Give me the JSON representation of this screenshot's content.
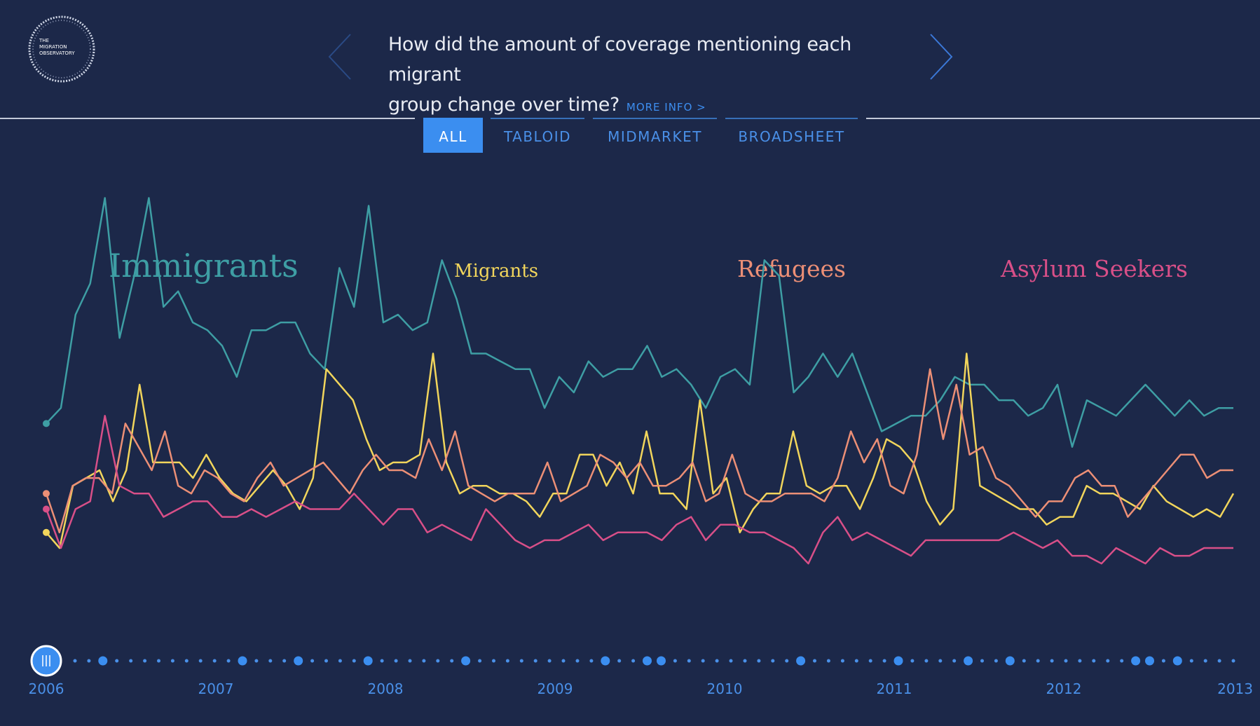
{
  "header": {
    "logo_lines": [
      "THE",
      "MIGRATION",
      "OBSERVATORY"
    ],
    "question_line1": "How did the amount of coverage mentioning each migrant",
    "question_line2": "group change over time?",
    "more_info": "MORE INFO >"
  },
  "tabs": [
    {
      "label": "ALL",
      "active": true
    },
    {
      "label": "TABLOID",
      "active": false
    },
    {
      "label": "MIDMARKET",
      "active": false
    },
    {
      "label": "BROADSHEET",
      "active": false
    }
  ],
  "colors": {
    "background": "#1c2849",
    "accent": "#3b8ef0",
    "immigrants": "#3e9ea4",
    "migrants": "#f1d55c",
    "refugees": "#ec8f76",
    "asylum_seekers": "#d84f88"
  },
  "chart_data": {
    "type": "line",
    "x_axis": {
      "start": 2006,
      "end": 2013,
      "ticks": [
        "2006",
        "2007",
        "2008",
        "2009",
        "2010",
        "2011",
        "2012",
        "2013"
      ]
    },
    "y_range": [
      0,
      100
    ],
    "grid": false,
    "series": [
      {
        "name": "Immigrants",
        "color": "#3e9ea4",
        "values": [
          46,
          48,
          60,
          64,
          75,
          57,
          65,
          75,
          61,
          63,
          59,
          58,
          56,
          52,
          58,
          58,
          59,
          59,
          55,
          53,
          66,
          61,
          74,
          59,
          60,
          58,
          59,
          67,
          62,
          55,
          55,
          54,
          53,
          53,
          48,
          52,
          50,
          54,
          52,
          53,
          53,
          56,
          52,
          53,
          51,
          48,
          52,
          53,
          51,
          67,
          65,
          50,
          52,
          55,
          52,
          55,
          50,
          45,
          46,
          47,
          47,
          49,
          52,
          51,
          51,
          49,
          49,
          47,
          48,
          51,
          43,
          49,
          48,
          47,
          49,
          51,
          49,
          47,
          49,
          47,
          48,
          48
        ]
      },
      {
        "name": "Migrants",
        "color": "#f1d55c",
        "values": [
          32,
          30,
          38,
          39,
          40,
          36,
          40,
          51,
          41,
          41,
          41,
          39,
          42,
          39,
          37,
          36,
          38,
          40,
          38,
          35,
          39,
          53,
          51,
          49,
          44,
          40,
          41,
          41,
          42,
          55,
          41,
          37,
          38,
          38,
          37,
          37,
          36,
          34,
          37,
          37,
          42,
          42,
          38,
          41,
          37,
          45,
          37,
          37,
          35,
          49,
          37,
          39,
          32,
          35,
          37,
          37,
          45,
          38,
          37,
          38,
          38,
          35,
          39,
          44,
          43,
          41,
          36,
          33,
          35,
          55,
          38,
          37,
          36,
          35,
          35,
          33,
          34,
          34,
          38,
          37,
          37,
          36,
          35,
          38,
          36,
          35,
          34,
          35,
          34,
          37
        ]
      },
      {
        "name": "Refugees",
        "color": "#ec8f76",
        "values": [
          37,
          32,
          38,
          39,
          39,
          37,
          46,
          43,
          40,
          45,
          38,
          37,
          40,
          39,
          37,
          36,
          39,
          41,
          38,
          39,
          40,
          41,
          39,
          37,
          40,
          42,
          40,
          40,
          39,
          44,
          40,
          45,
          38,
          37,
          36,
          37,
          37,
          37,
          41,
          36,
          37,
          38,
          42,
          41,
          39,
          41,
          38,
          38,
          39,
          41,
          36,
          37,
          42,
          37,
          36,
          36,
          37,
          37,
          37,
          36,
          39,
          45,
          41,
          44,
          38,
          37,
          42,
          53,
          44,
          51,
          42,
          43,
          39,
          38,
          36,
          34,
          36,
          36,
          39,
          40,
          38,
          38,
          34,
          36,
          38,
          40,
          42,
          42,
          39,
          40,
          40
        ]
      },
      {
        "name": "Asylum Seekers",
        "color": "#d84f88",
        "values": [
          35,
          30,
          35,
          36,
          47,
          38,
          37,
          37,
          34,
          35,
          36,
          36,
          34,
          34,
          35,
          34,
          35,
          36,
          35,
          35,
          35,
          37,
          35,
          33,
          35,
          35,
          32,
          33,
          32,
          31,
          35,
          33,
          31,
          30,
          31,
          31,
          32,
          33,
          31,
          32,
          32,
          32,
          31,
          33,
          34,
          31,
          33,
          33,
          32,
          32,
          31,
          30,
          28,
          32,
          34,
          31,
          32,
          31,
          30,
          29,
          31,
          31,
          31,
          31,
          31,
          31,
          32,
          31,
          30,
          31,
          29,
          29,
          28,
          30,
          29,
          28,
          30,
          29,
          29,
          30,
          30,
          30
        ]
      }
    ],
    "markers": {
      "count": 84,
      "large_indices": [
        2,
        12,
        16,
        21,
        28,
        38,
        41,
        42,
        52,
        59,
        64,
        67,
        76,
        77,
        79
      ]
    }
  },
  "labels": {
    "immigrants": "Immigrants",
    "migrants": "Migrants",
    "refugees": "Refugees",
    "asylum_seekers": "Asylum Seekers"
  }
}
